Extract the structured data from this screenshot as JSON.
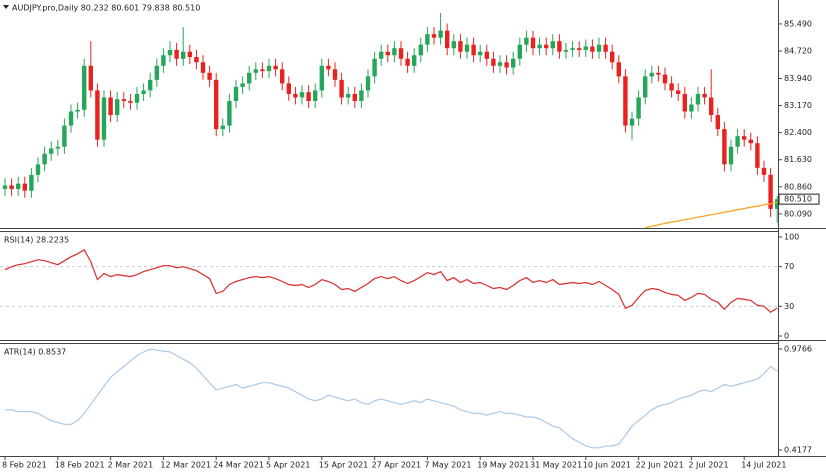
{
  "chart_data": [
    {
      "type": "candlestick",
      "title": "AUDJPY.pro,Daily  80.232 80.601 79.838 80.510",
      "categories": [
        "8 Feb 2021",
        null,
        null,
        null,
        null,
        null,
        null,
        null,
        "18 Feb 2021",
        null,
        null,
        null,
        null,
        null,
        null,
        null,
        "2 Mar 2021",
        null,
        null,
        null,
        null,
        null,
        null,
        null,
        "12 Mar 2021",
        null,
        null,
        null,
        null,
        null,
        null,
        null,
        "24 Mar 2021",
        null,
        null,
        null,
        null,
        null,
        null,
        null,
        "5 Apr 2021",
        null,
        null,
        null,
        null,
        null,
        null,
        null,
        "15 Apr 2021",
        null,
        null,
        null,
        null,
        null,
        null,
        null,
        "27 Apr 2021",
        null,
        null,
        null,
        null,
        null,
        null,
        null,
        "7 May 2021",
        null,
        null,
        null,
        null,
        null,
        null,
        null,
        "19 May 2021",
        null,
        null,
        null,
        null,
        null,
        null,
        null,
        "31 May 2021",
        null,
        null,
        null,
        null,
        null,
        null,
        null,
        "10 Jun 2021",
        null,
        null,
        null,
        null,
        null,
        null,
        null,
        "22 Jun 2021",
        null,
        null,
        null,
        null,
        null,
        null,
        null,
        "2 Jul 2021",
        null,
        null,
        null,
        null,
        null,
        null,
        null,
        "14 Jul 2021",
        null,
        null,
        null,
        null,
        null
      ],
      "open": [
        80.8,
        80.9,
        80.8,
        80.95,
        80.75,
        81.2,
        81.5,
        81.8,
        81.95,
        82.0,
        82.6,
        83.0,
        83.05,
        84.3,
        83.6,
        82.2,
        83.4,
        82.9,
        83.35,
        83.3,
        83.25,
        83.5,
        83.6,
        83.9,
        84.3,
        84.6,
        84.75,
        84.5,
        84.7,
        84.55,
        84.4,
        84.1,
        83.9,
        82.5,
        82.6,
        83.3,
        83.7,
        83.8,
        84.1,
        84.2,
        84.15,
        84.3,
        84.2,
        83.8,
        83.5,
        83.4,
        83.55,
        83.3,
        83.6,
        84.3,
        84.2,
        83.9,
        83.4,
        83.5,
        83.3,
        83.6,
        84.0,
        84.5,
        84.7,
        84.6,
        84.8,
        84.5,
        84.3,
        84.6,
        84.9,
        85.2,
        85.1,
        85.3,
        84.8,
        85.0,
        84.7,
        84.9,
        84.6,
        84.7,
        84.5,
        84.3,
        84.4,
        84.25,
        84.5,
        84.9,
        85.1,
        84.8,
        84.9,
        84.8,
        85.0,
        84.7,
        84.75,
        84.8,
        84.75,
        84.85,
        84.7,
        84.9,
        84.7,
        84.4,
        84.0,
        82.6,
        82.8,
        83.4,
        84.0,
        84.1,
        84.05,
        83.8,
        83.6,
        83.5,
        83.0,
        83.2,
        83.5,
        83.4,
        82.9,
        82.5,
        81.5,
        82.0,
        82.3,
        82.2,
        82.1,
        81.4,
        81.2,
        80.232
      ],
      "high": [
        81.1,
        81.1,
        81.15,
        81.15,
        81.4,
        81.7,
        82.0,
        82.15,
        82.2,
        82.8,
        83.2,
        83.25,
        84.5,
        85.0,
        83.8,
        83.6,
        83.6,
        83.55,
        83.55,
        83.5,
        83.7,
        83.8,
        84.1,
        84.5,
        84.8,
        85.0,
        84.95,
        85.4,
        84.9,
        84.75,
        84.6,
        84.3,
        84.1,
        82.8,
        83.5,
        83.9,
        84.0,
        84.3,
        84.4,
        84.4,
        84.5,
        84.5,
        84.4,
        84.0,
        83.7,
        83.75,
        83.75,
        83.8,
        84.5,
        84.5,
        84.4,
        84.1,
        83.7,
        83.7,
        83.8,
        84.2,
        84.7,
        84.9,
        84.9,
        85.0,
        85.0,
        84.7,
        84.8,
        85.1,
        85.4,
        85.4,
        85.8,
        85.5,
        85.2,
        85.2,
        85.1,
        85.1,
        84.9,
        84.9,
        84.7,
        84.6,
        84.6,
        84.7,
        85.1,
        85.3,
        85.3,
        85.1,
        85.1,
        85.2,
        85.2,
        84.95,
        85.0,
        85.0,
        85.05,
        85.05,
        85.1,
        85.1,
        84.9,
        84.6,
        84.2,
        83.0,
        83.6,
        84.2,
        84.3,
        84.3,
        84.25,
        84.0,
        83.8,
        83.7,
        83.4,
        83.7,
        83.7,
        84.2,
        83.1,
        82.7,
        82.2,
        82.5,
        82.5,
        82.4,
        82.3,
        81.6,
        81.4,
        80.601
      ],
      "low": [
        80.6,
        80.6,
        80.6,
        80.55,
        80.55,
        81.0,
        81.3,
        81.6,
        81.75,
        81.8,
        82.4,
        82.8,
        82.85,
        83.4,
        82.0,
        82.0,
        82.7,
        82.7,
        83.1,
        83.05,
        83.05,
        83.3,
        83.4,
        83.7,
        84.1,
        84.4,
        84.3,
        84.3,
        84.35,
        84.2,
        83.9,
        83.7,
        82.3,
        82.3,
        82.4,
        83.1,
        83.5,
        83.6,
        83.9,
        83.95,
        83.95,
        84.0,
        83.6,
        83.3,
        83.2,
        83.2,
        83.1,
        83.1,
        83.4,
        84.0,
        83.7,
        83.2,
        83.2,
        83.1,
        83.1,
        83.4,
        83.8,
        84.3,
        84.4,
        84.4,
        84.3,
        84.1,
        84.1,
        84.4,
        84.7,
        84.9,
        84.9,
        84.6,
        84.6,
        84.5,
        84.5,
        84.4,
        84.4,
        84.3,
        84.1,
        84.1,
        84.05,
        84.05,
        84.3,
        84.7,
        84.6,
        84.6,
        84.6,
        84.6,
        84.5,
        84.5,
        84.55,
        84.55,
        84.55,
        84.5,
        84.5,
        84.5,
        84.2,
        83.8,
        82.4,
        82.2,
        82.6,
        83.2,
        83.8,
        83.85,
        83.6,
        83.4,
        83.3,
        82.8,
        82.8,
        83.0,
        83.2,
        82.7,
        82.3,
        81.3,
        81.3,
        81.8,
        82.0,
        81.9,
        81.2,
        81.0,
        80.0,
        79.838
      ],
      "close": [
        80.9,
        80.8,
        80.95,
        80.75,
        81.2,
        81.5,
        81.8,
        81.95,
        82.0,
        82.6,
        83.0,
        83.05,
        84.3,
        83.6,
        82.2,
        83.4,
        82.9,
        83.35,
        83.3,
        83.25,
        83.5,
        83.6,
        83.9,
        84.3,
        84.6,
        84.75,
        84.5,
        84.7,
        84.55,
        84.4,
        84.1,
        83.9,
        82.5,
        82.6,
        83.3,
        83.7,
        83.8,
        84.1,
        84.2,
        84.15,
        84.3,
        84.2,
        83.8,
        83.5,
        83.4,
        83.55,
        83.3,
        83.6,
        84.3,
        84.2,
        83.9,
        83.4,
        83.5,
        83.3,
        83.6,
        84.0,
        84.5,
        84.7,
        84.6,
        84.8,
        84.5,
        84.3,
        84.6,
        84.9,
        85.2,
        85.1,
        85.3,
        84.8,
        85.0,
        84.7,
        84.9,
        84.6,
        84.7,
        84.5,
        84.3,
        84.4,
        84.25,
        84.5,
        84.9,
        85.1,
        84.8,
        84.9,
        84.8,
        85.0,
        84.7,
        84.75,
        84.8,
        84.75,
        84.85,
        84.7,
        84.9,
        84.7,
        84.4,
        84.0,
        82.6,
        82.8,
        83.4,
        84.0,
        84.1,
        84.05,
        83.8,
        83.6,
        83.5,
        83.0,
        83.2,
        83.5,
        83.4,
        82.9,
        82.5,
        81.5,
        82.0,
        82.3,
        82.2,
        82.1,
        81.4,
        81.2,
        80.232,
        80.51
      ],
      "up_color": "#26a65b",
      "down_color": "#e8231f",
      "overlay": {
        "color": "#f5a623",
        "values": [
          null,
          null,
          null,
          null,
          null,
          null,
          null,
          null,
          null,
          null,
          null,
          null,
          null,
          null,
          null,
          null,
          null,
          null,
          null,
          null,
          null,
          null,
          null,
          null,
          null,
          null,
          null,
          null,
          null,
          null,
          null,
          null,
          null,
          null,
          null,
          null,
          null,
          null,
          null,
          null,
          null,
          null,
          null,
          null,
          null,
          null,
          null,
          null,
          null,
          null,
          null,
          null,
          null,
          null,
          null,
          null,
          null,
          null,
          null,
          null,
          null,
          null,
          null,
          null,
          null,
          null,
          null,
          null,
          null,
          null,
          null,
          null,
          null,
          null,
          null,
          null,
          null,
          null,
          null,
          null,
          null,
          null,
          null,
          null,
          null,
          null,
          null,
          null,
          null,
          null,
          null,
          null,
          null,
          null,
          null,
          null,
          null,
          79.7,
          79.74,
          79.78,
          79.82,
          79.86,
          79.89,
          79.93,
          79.96,
          80.0,
          80.03,
          80.07,
          80.1,
          80.14,
          80.17,
          80.21,
          80.24,
          80.28,
          80.31,
          80.35,
          80.38,
          80.42
        ]
      },
      "current_price": {
        "value": 80.51,
        "label": "80.510"
      },
      "ylim": [
        79.69,
        86.17
      ],
      "yticks": [
        {
          "value": 85.49,
          "label": "85.490"
        },
        {
          "value": 84.72,
          "label": "84.720"
        },
        {
          "value": 83.94,
          "label": "83.940"
        },
        {
          "value": 83.17,
          "label": "83.170"
        },
        {
          "value": 82.4,
          "label": "82.400"
        },
        {
          "value": 81.63,
          "label": "81.630"
        },
        {
          "value": 80.86,
          "label": "80.860"
        },
        {
          "value": 80.09,
          "label": "80.090"
        }
      ]
    },
    {
      "type": "line",
      "title": "RSI(14) 28.2235",
      "color": "#d92b2b",
      "values": [
        67,
        70,
        72,
        73,
        75,
        77,
        76,
        74,
        72,
        76,
        80,
        83,
        87,
        75,
        57,
        63,
        60,
        62,
        61,
        60,
        62,
        65,
        67,
        69,
        71,
        71,
        69,
        70,
        68,
        66,
        62,
        58,
        43,
        45,
        52,
        55,
        57,
        59,
        60,
        59,
        60,
        58,
        55,
        52,
        51,
        52,
        49,
        52,
        57,
        55,
        52,
        47,
        48,
        45,
        49,
        53,
        58,
        60,
        58,
        60,
        56,
        53,
        56,
        60,
        64,
        62,
        65,
        56,
        59,
        54,
        57,
        53,
        54,
        51,
        48,
        49,
        47,
        51,
        56,
        59,
        54,
        56,
        54,
        57,
        52,
        53,
        54,
        53,
        54,
        52,
        55,
        51,
        47,
        42,
        28,
        31,
        39,
        46,
        48,
        47,
        44,
        42,
        41,
        36,
        39,
        43,
        42,
        37,
        34,
        27,
        34,
        38,
        37,
        36,
        31,
        30,
        24,
        28.22
      ],
      "ylim": [
        -4,
        105
      ],
      "yticks": [
        100,
        70,
        30,
        0
      ],
      "levels": [
        70,
        30
      ]
    },
    {
      "type": "line",
      "title": "ATR(14) 0.8537",
      "color": "#a9c9ea",
      "values": [
        0.64,
        0.64,
        0.63,
        0.63,
        0.63,
        0.62,
        0.6,
        0.58,
        0.57,
        0.56,
        0.56,
        0.58,
        0.62,
        0.67,
        0.72,
        0.77,
        0.82,
        0.85,
        0.88,
        0.91,
        0.94,
        0.96,
        0.975,
        0.97,
        0.965,
        0.96,
        0.94,
        0.92,
        0.9,
        0.87,
        0.83,
        0.79,
        0.75,
        0.76,
        0.77,
        0.78,
        0.76,
        0.77,
        0.78,
        0.79,
        0.79,
        0.78,
        0.77,
        0.76,
        0.74,
        0.72,
        0.7,
        0.69,
        0.7,
        0.72,
        0.71,
        0.7,
        0.69,
        0.7,
        0.68,
        0.67,
        0.69,
        0.7,
        0.69,
        0.68,
        0.67,
        0.68,
        0.69,
        0.68,
        0.7,
        0.69,
        0.68,
        0.67,
        0.66,
        0.64,
        0.63,
        0.62,
        0.62,
        0.61,
        0.62,
        0.63,
        0.62,
        0.62,
        0.61,
        0.6,
        0.6,
        0.59,
        0.57,
        0.55,
        0.54,
        0.51,
        0.48,
        0.46,
        0.44,
        0.43,
        0.43,
        0.44,
        0.44,
        0.45,
        0.5,
        0.55,
        0.58,
        0.61,
        0.64,
        0.66,
        0.67,
        0.68,
        0.7,
        0.71,
        0.72,
        0.74,
        0.75,
        0.74,
        0.76,
        0.78,
        0.77,
        0.78,
        0.79,
        0.8,
        0.81,
        0.84,
        0.88,
        0.8537
      ],
      "ylim": [
        0.39,
        1.004
      ],
      "yticks": [
        0.9766,
        0.4177
      ]
    }
  ]
}
